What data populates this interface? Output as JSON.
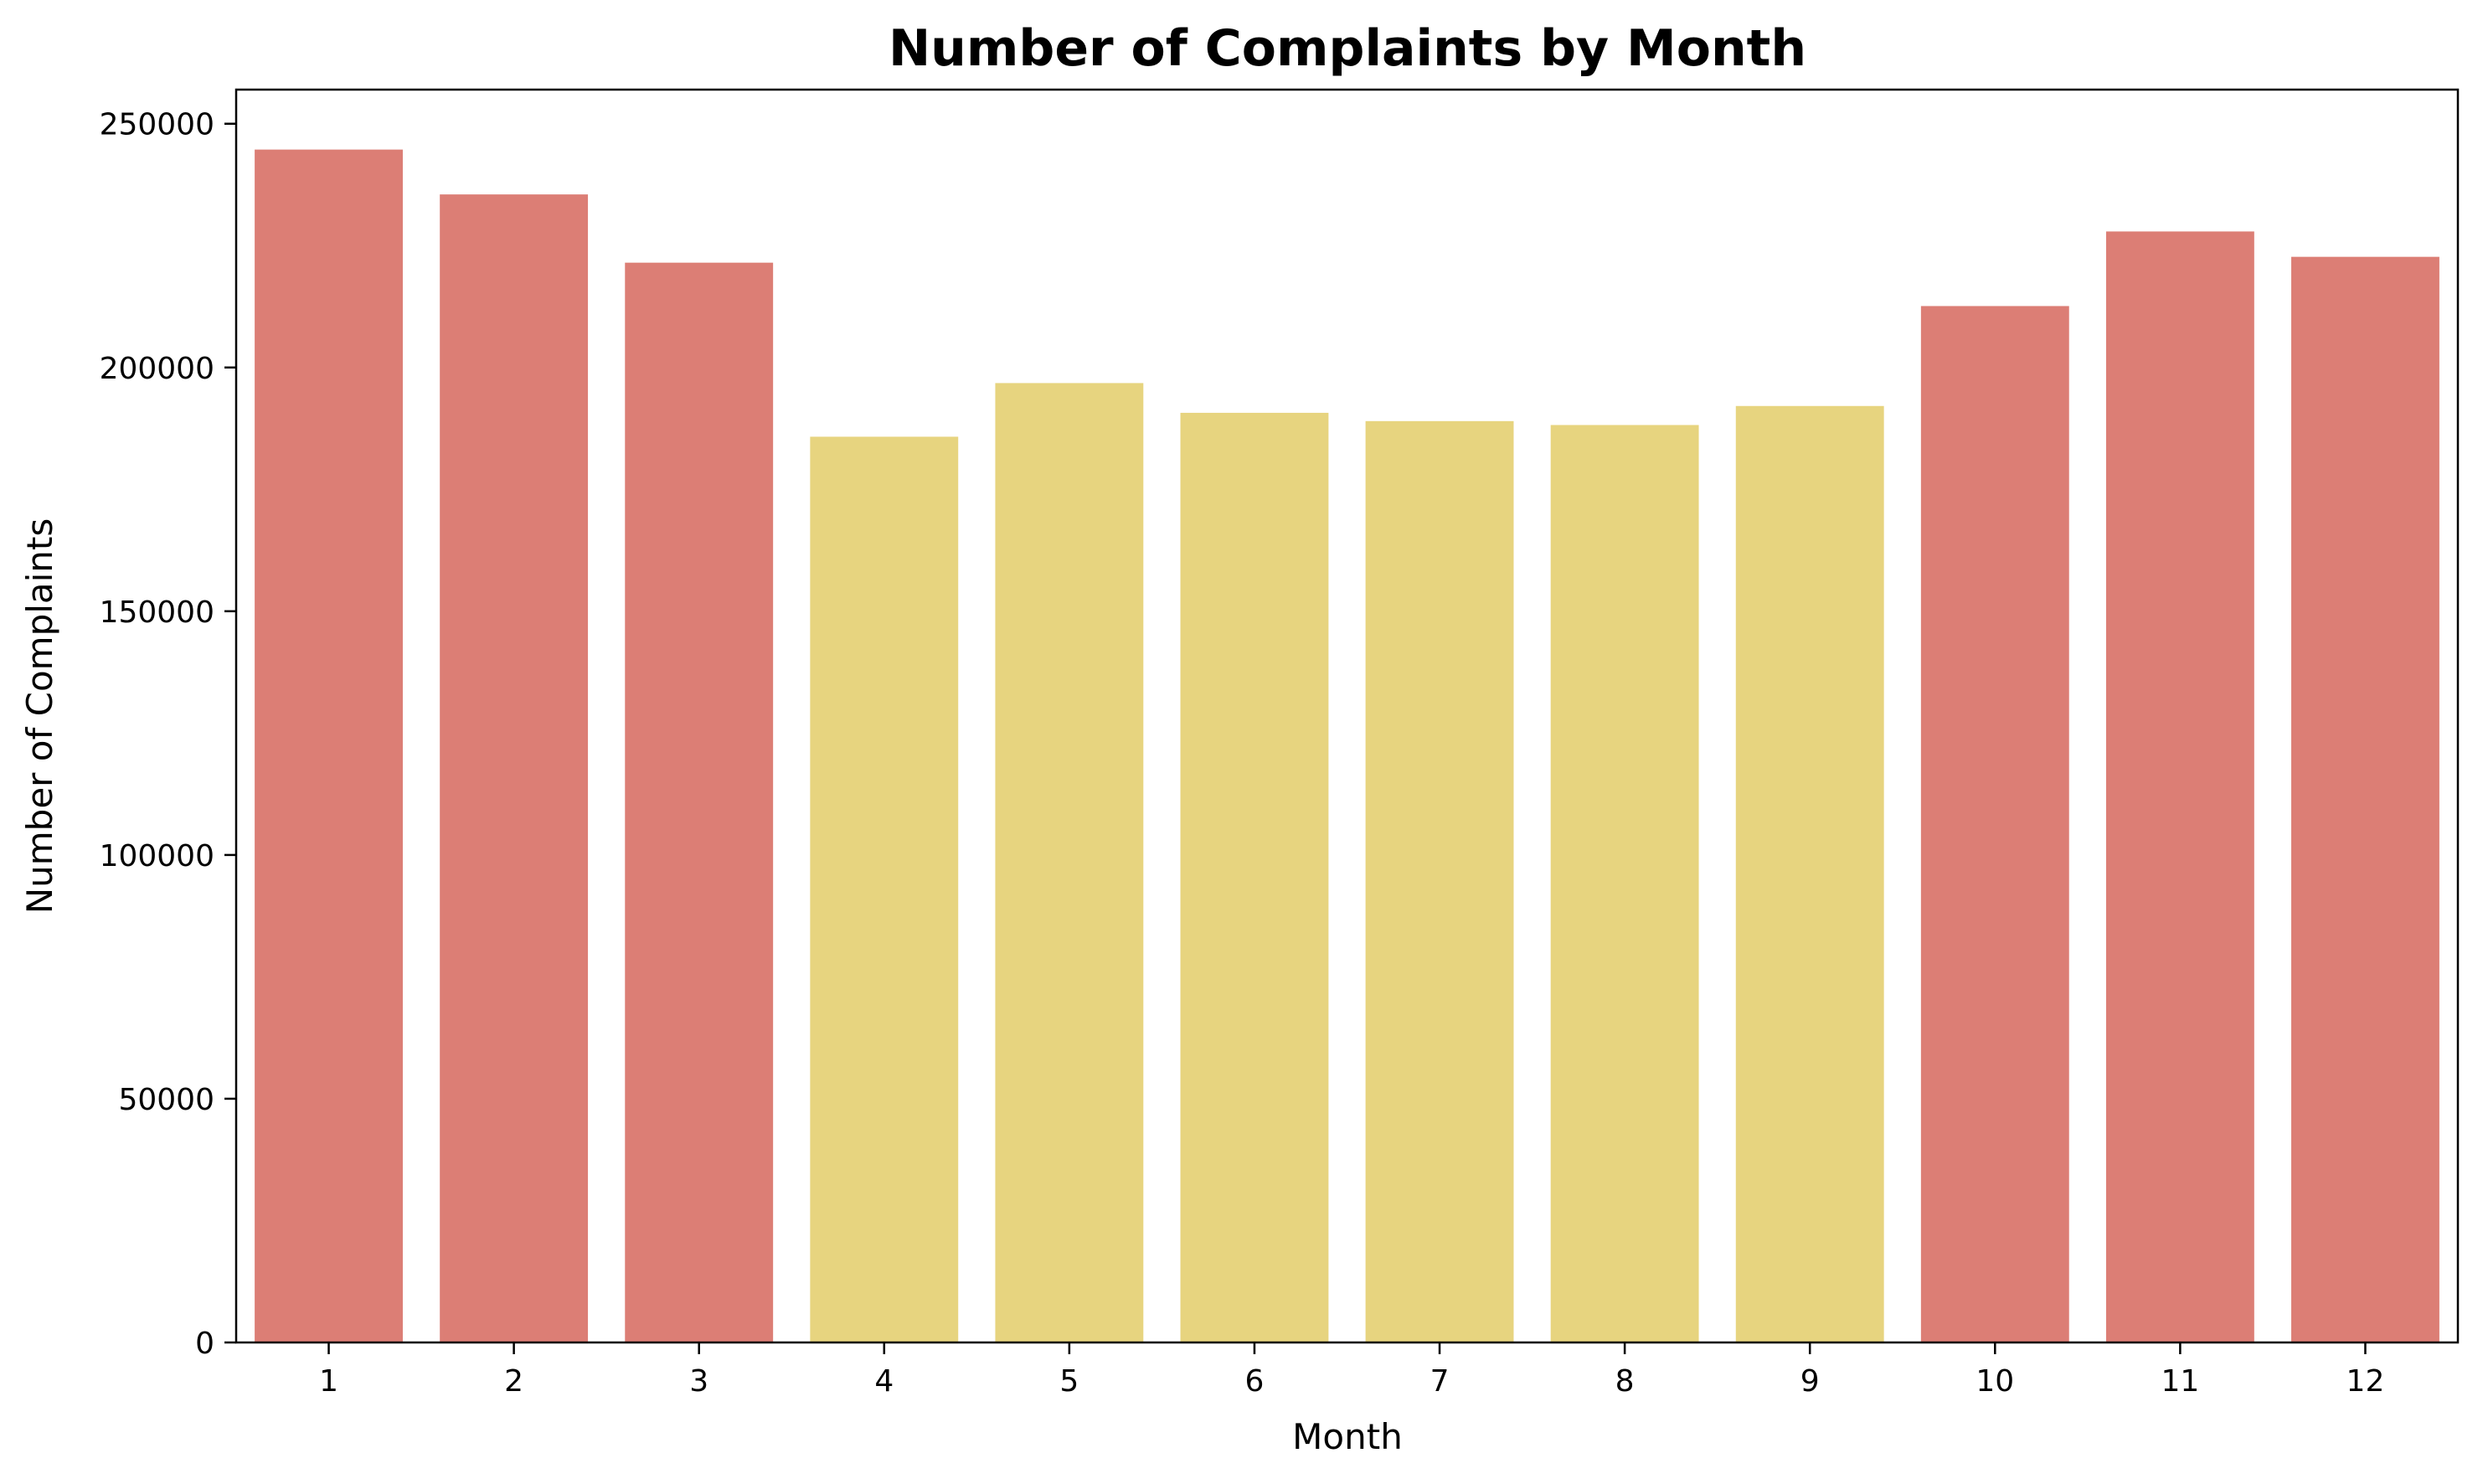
{
  "chart_data": {
    "type": "bar",
    "title": "Number of Complaints by Month",
    "xlabel": "Month",
    "ylabel": "Number of Complaints",
    "categories": [
      "1",
      "2",
      "3",
      "4",
      "5",
      "6",
      "7",
      "8",
      "9",
      "10",
      "11",
      "12"
    ],
    "values": [
      244700,
      235500,
      221500,
      185800,
      196800,
      190700,
      189000,
      188200,
      192100,
      212600,
      227900,
      222700
    ],
    "bar_colors": [
      "#dc7e75",
      "#dc7e75",
      "#dc7e75",
      "#e7d47f",
      "#e7d47f",
      "#e7d47f",
      "#e7d47f",
      "#e7d47f",
      "#e7d47f",
      "#dc7e75",
      "#dc7e75",
      "#dc7e75"
    ],
    "ylim": [
      0,
      257000
    ],
    "yticks": [
      0,
      50000,
      100000,
      150000,
      200000,
      250000
    ],
    "grid": false,
    "legend": "none"
  }
}
